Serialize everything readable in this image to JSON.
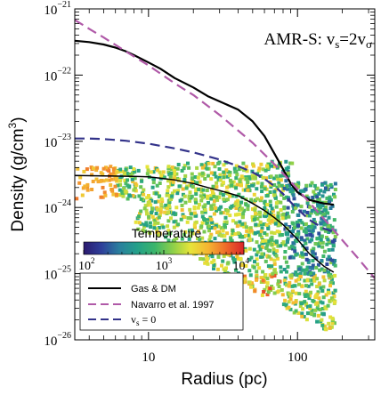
{
  "chart_data": {
    "type": "line",
    "title": "AMR-S: v_s=2v_σ",
    "title_parts": {
      "main": "AMR-S: v",
      "sub1": "s",
      "mid": "=2v",
      "sub2": "σ"
    },
    "xlabel": "Radius (pc)",
    "ylabel_main": "Density (g/cm",
    "ylabel_sup": "3",
    "ylabel_close": ")",
    "xscale": "log",
    "yscale": "log",
    "xlim": [
      3.2,
      330
    ],
    "ylim": [
      1e-26,
      1e-21
    ],
    "x_ticks": [
      {
        "value": 10,
        "label": "10"
      },
      {
        "value": 100,
        "label": "100"
      }
    ],
    "y_ticks": [
      {
        "value": 1e-21,
        "base": "10",
        "exp": "−21"
      },
      {
        "value": 1e-22,
        "base": "10",
        "exp": "−22"
      },
      {
        "value": 1e-23,
        "base": "10",
        "exp": "−23"
      },
      {
        "value": 1e-24,
        "base": "10",
        "exp": "−24"
      },
      {
        "value": 1e-25,
        "base": "10",
        "exp": "−25"
      },
      {
        "value": 1e-26,
        "base": "10",
        "exp": "−26"
      }
    ],
    "series": [
      {
        "name": "Gas & DM",
        "style": "solid",
        "color": "#000000",
        "x": [
          3.2,
          4,
          5,
          6,
          7,
          8,
          10,
          12,
          15,
          20,
          25,
          30,
          40,
          50,
          60,
          70,
          80,
          90,
          100,
          120,
          150,
          175
        ],
        "y": [
          3.3e-22,
          3.15e-22,
          2.9e-22,
          2.6e-22,
          2.3e-22,
          2e-22,
          1.55e-22,
          1.25e-22,
          9e-23,
          6.5e-23,
          4.8e-23,
          4e-23,
          3e-23,
          2e-23,
          1.2e-23,
          6.5e-24,
          3.8e-24,
          2.3e-24,
          1.7e-24,
          1.3e-24,
          1.15e-24,
          1.1e-24
        ]
      },
      {
        "name": "Navarro et al. 1997",
        "style": "dashed",
        "color": "#b05aa8",
        "x": [
          3.2,
          4,
          5,
          7,
          10,
          15,
          20,
          30,
          50,
          70,
          100,
          150,
          200,
          250,
          330
        ],
        "y": [
          6.8e-22,
          5e-22,
          3.7e-22,
          2.3e-22,
          1.4e-22,
          7.5e-23,
          5e-23,
          2.5e-23,
          9.5e-24,
          4.5e-24,
          1.9e-24,
          6.8e-25,
          3.2e-25,
          1.8e-25,
          8.5e-26
        ]
      },
      {
        "name": "v_s = 0",
        "style": "dashed",
        "color": "#33338a",
        "x": [
          3.2,
          4,
          5,
          7,
          10,
          15,
          20,
          30,
          40,
          50,
          60,
          70,
          80,
          90,
          100,
          120,
          150,
          175
        ],
        "y": [
          1.1e-23,
          1.1e-23,
          1.08e-23,
          1.02e-23,
          9.2e-24,
          7.8e-24,
          6.8e-24,
          5.3e-24,
          4.2e-24,
          3.4e-24,
          2.7e-24,
          2.1e-24,
          1.6e-24,
          1.2e-24,
          9.5e-25,
          6.5e-25,
          4.8e-25,
          4.3e-25
        ]
      },
      {
        "name": "gas-profile",
        "style": "solid-thin",
        "color": "#000000",
        "x": [
          3.2,
          5,
          8,
          10,
          15,
          20,
          25,
          30,
          40,
          50,
          60,
          70,
          80,
          100,
          120,
          150,
          175
        ],
        "y": [
          3.05e-24,
          3e-24,
          2.95e-24,
          2.9e-24,
          2.6e-24,
          2.3e-24,
          2e-24,
          1.8e-24,
          1.5e-24,
          1.15e-24,
          9e-25,
          7e-25,
          5.5e-25,
          3.3e-25,
          2e-25,
          1.3e-25,
          1.05e-25
        ]
      }
    ],
    "legend": {
      "placement": "bottom-left",
      "entries": [
        {
          "label": "Gas & DM",
          "style": "solid",
          "color": "#000000"
        },
        {
          "label": "Navarro et al. 1997",
          "style": "dashed",
          "color": "#b05aa8"
        },
        {
          "label_main": "v",
          "label_sub": "s",
          "label_rest": " = 0",
          "style": "dashed",
          "color": "#33338a"
        }
      ]
    },
    "colorbar": {
      "title": "Temperature",
      "scale": "log",
      "range": [
        100,
        10000
      ],
      "ticks": [
        {
          "value": 100,
          "base": "10",
          "exp": "2"
        },
        {
          "value": 1000,
          "base": "10",
          "exp": "3"
        },
        {
          "value": 10000,
          "base": "10",
          "exp": "4"
        }
      ],
      "colors": [
        "#2b1a6e",
        "#2e3f9a",
        "#2a7f9e",
        "#24a089",
        "#3bb56b",
        "#8ccf4a",
        "#e7e43a",
        "#f5b431",
        "#ee6a2a",
        "#d9262a"
      ]
    }
  }
}
